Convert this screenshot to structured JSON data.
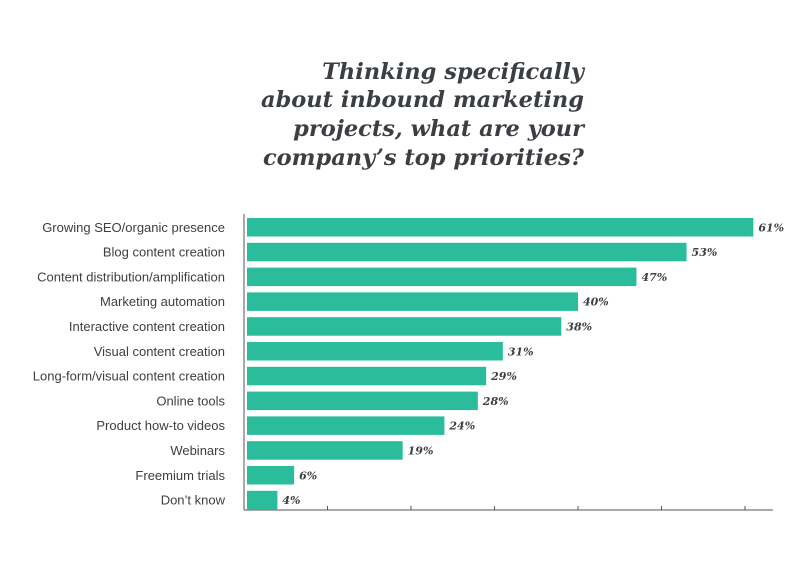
{
  "chart_data": {
    "type": "bar",
    "orientation": "horizontal",
    "title_lines": [
      "Thinking specifically",
      "about inbound marketing",
      "projects, what are your",
      "company’s top priorities?"
    ],
    "categories": [
      "Growing SEO/organic presence",
      "Blog content creation",
      "Content distribution/amplification",
      "Marketing automation",
      "Interactive content creation",
      "Visual content creation",
      "Long-form/visual content creation",
      "Online tools",
      "Product how-to videos",
      "Webinars",
      "Freemium trials",
      "Don’t know"
    ],
    "values": [
      61,
      53,
      47,
      40,
      38,
      31,
      29,
      28,
      24,
      19,
      6,
      4
    ],
    "value_labels": [
      "61%",
      "53%",
      "47%",
      "40%",
      "38%",
      "31%",
      "29%",
      "28%",
      "24%",
      "19%",
      "6%",
      "4%"
    ],
    "xlim": [
      0,
      63
    ],
    "x_ticks": [
      10,
      20,
      30,
      40,
      50,
      60
    ],
    "tick_labels_shown": false,
    "grid": false,
    "legend": "none",
    "bar_color": "#2bbc9c",
    "axis_color": "#555555",
    "text_color": "#3b3f44"
  }
}
